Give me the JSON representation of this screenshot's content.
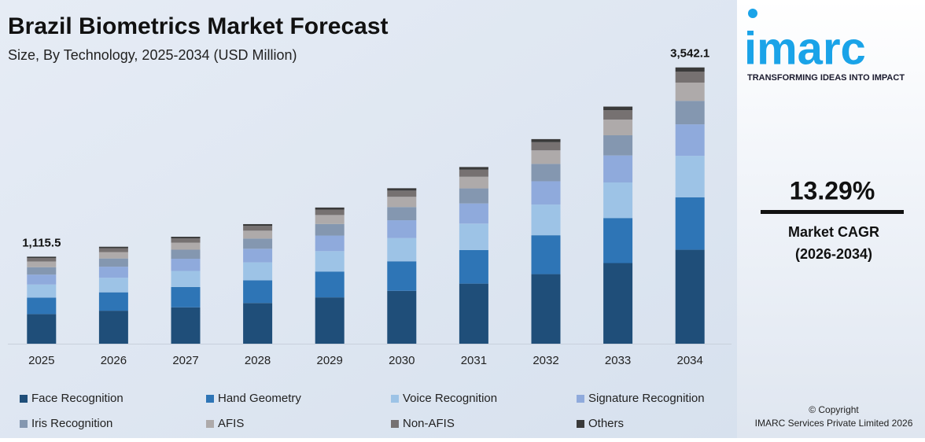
{
  "chart_data": {
    "type": "stacked-bar",
    "title": "Brazil Biometrics Market Forecast",
    "subtitle": "Size, By Technology, 2025-2034 (USD Million)",
    "categories": [
      "2025",
      "2026",
      "2027",
      "2028",
      "2029",
      "2030",
      "2031",
      "2032",
      "2033",
      "2034"
    ],
    "series": [
      {
        "name": "Face Recognition",
        "color": "#1f4e79",
        "values": [
          379.3,
          422.6,
          466.1,
          521.2,
          593.6,
          677.6,
          770.1,
          891.8,
          1033.6,
          1204.3
        ]
      },
      {
        "name": "Hand Geometry",
        "color": "#2e75b6",
        "values": [
          211.9,
          236.2,
          260.5,
          291.3,
          331.7,
          378.7,
          430.4,
          498.4,
          577.6,
          673.0
        ]
      },
      {
        "name": "Voice Recognition",
        "color": "#9dc3e6",
        "values": [
          167.3,
          186.5,
          205.7,
          230.0,
          261.9,
          299.0,
          339.8,
          393.5,
          456.0,
          531.3
        ]
      },
      {
        "name": "Signature Recognition",
        "color": "#8faadc",
        "values": [
          127.2,
          141.7,
          156.3,
          174.8,
          199.0,
          227.2,
          258.2,
          299.0,
          346.6,
          403.8
        ]
      },
      {
        "name": "Iris Recognition",
        "color": "#8497b0",
        "values": [
          94.8,
          105.7,
          116.5,
          130.3,
          148.4,
          169.4,
          192.5,
          223.0,
          258.4,
          301.1
        ]
      },
      {
        "name": "AFIS",
        "color": "#aeaaaa",
        "values": [
          73.6,
          82.0,
          90.5,
          101.2,
          115.2,
          131.5,
          149.5,
          173.1,
          200.6,
          233.8
        ]
      },
      {
        "name": "Non-AFIS",
        "color": "#767171",
        "values": [
          44.6,
          49.7,
          54.8,
          61.3,
          69.8,
          79.7,
          90.6,
          104.9,
          121.6,
          141.7
        ]
      },
      {
        "name": "Others",
        "color": "#3a3a3a",
        "values": [
          16.8,
          18.6,
          20.6,
          23.0,
          26.2,
          29.9,
          34.0,
          39.3,
          45.6,
          53.1
        ]
      }
    ],
    "annotations": [
      {
        "category": "2025",
        "value": 1115.5,
        "label": "1,115.5"
      },
      {
        "category": "2034",
        "value": 3542.1,
        "label": "3,542.1"
      }
    ],
    "ylim": [
      0,
      3600
    ]
  },
  "sidebar": {
    "logo": "imarc",
    "tagline": "TRANSFORMING IDEAS INTO IMPACT",
    "cagr": "13.29%",
    "cagr_label": "Market CAGR",
    "cagr_period": "(2026-2034)",
    "copyright": "© Copyright",
    "company": "IMARC Services Private Limited 2026"
  }
}
